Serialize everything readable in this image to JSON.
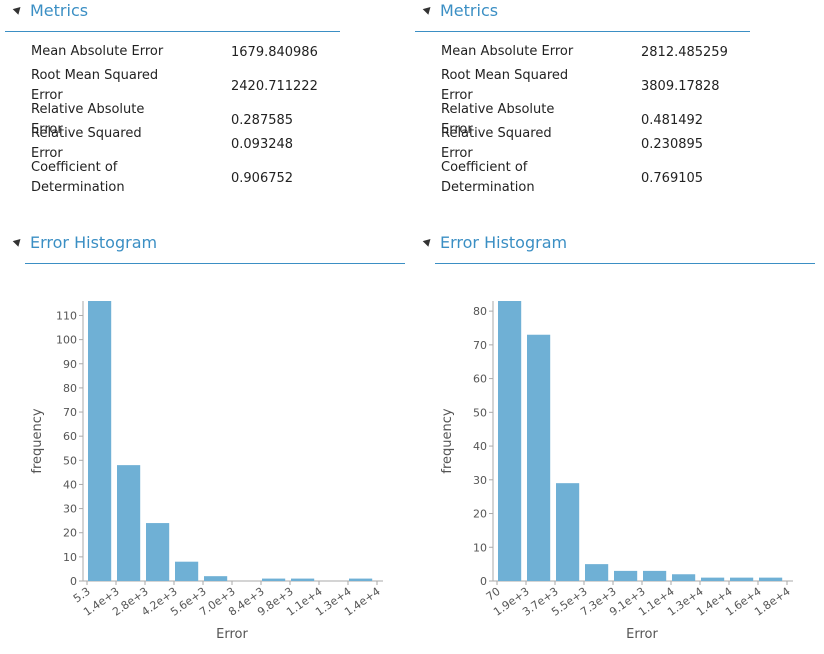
{
  "panels": [
    {
      "title": "Metrics",
      "metrics": [
        {
          "label": "Mean Absolute Error",
          "value": 1679.840986
        },
        {
          "label": "Root Mean Squared Error",
          "value": 2420.711222
        },
        {
          "label": "Relative Absolute Error",
          "value": 0.287585
        },
        {
          "label": "Relative Squared Error",
          "value": 0.093248
        },
        {
          "label": "Coefficient of Determination",
          "value": 0.906752
        }
      ]
    },
    {
      "title": "Metrics",
      "metrics": [
        {
          "label": "Mean Absolute Error",
          "value": 2812.485259
        },
        {
          "label": "Root Mean Squared Error",
          "value": 3809.17828
        },
        {
          "label": "Relative Absolute Error",
          "value": 0.481492
        },
        {
          "label": "Relative Squared Error",
          "value": 0.230895
        },
        {
          "label": "Coefficient of Determination",
          "value": 0.769105
        }
      ]
    }
  ],
  "chart_data": [
    {
      "type": "histogram",
      "title": "Error Histogram",
      "x_label": "Error",
      "y_label": "frequency",
      "color": "#6fb0d5",
      "bins": [
        5.3,
        1402.3,
        2799.3,
        4196.3,
        5593.3,
        6990.3,
        8387.3,
        9784.3,
        11181.3,
        12578.3,
        13975.3
      ],
      "values": [
        116,
        48,
        24,
        8,
        2,
        0,
        1,
        1,
        0,
        1
      ],
      "xlim": [
        5.3,
        13975.3
      ],
      "xticks": [
        {
          "value": 5.3,
          "label": "5.3"
        },
        {
          "value": 1402.3,
          "label": "1.4e+3"
        },
        {
          "value": 2799.3,
          "label": "2.8e+3"
        },
        {
          "value": 4196.3,
          "label": "4.2e+3"
        },
        {
          "value": 5593.3,
          "label": "5.6e+3"
        },
        {
          "value": 6990.3,
          "label": "7.0e+3"
        },
        {
          "value": 8387.3,
          "label": "8.4e+3"
        },
        {
          "value": 9784.3,
          "label": "9.8e+3"
        },
        {
          "value": 11181.3,
          "label": "1.1e+4"
        },
        {
          "value": 12578.3,
          "label": "1.3e+4"
        },
        {
          "value": 13975.3,
          "label": "1.4e+4"
        }
      ],
      "ylim": [
        0,
        116
      ],
      "yticks": [
        0,
        10,
        20,
        30,
        40,
        50,
        60,
        70,
        80,
        90,
        100,
        110
      ]
    },
    {
      "type": "histogram",
      "title": "Error Histogram",
      "x_label": "Error",
      "y_label": "frequency",
      "color": "#6fb0d5",
      "bins": [
        70,
        1870,
        3670,
        5470,
        7270,
        9070,
        10870,
        12670,
        14470,
        16270,
        18070
      ],
      "values": [
        83,
        73,
        29,
        5,
        3,
        3,
        2,
        1,
        1,
        1
      ],
      "xlim": [
        70,
        18070
      ],
      "xticks": [
        70,
        {
          "value": 1870,
          "label": "1.9e+3"
        },
        {
          "value": 3670,
          "label": "3.7e+3"
        },
        {
          "value": 5470,
          "label": "5.5e+3"
        },
        {
          "value": 7270,
          "label": "7.3e+3"
        },
        {
          "value": 9070,
          "label": "9.1e+3"
        },
        {
          "value": 10870,
          "label": "1.1e+4"
        },
        {
          "value": 12670,
          "label": "1.3e+4"
        },
        {
          "value": 14470,
          "label": "1.4e+4"
        },
        {
          "value": 16270,
          "label": "1.6e+4"
        },
        {
          "value": 18070,
          "label": "1.8e+4"
        }
      ],
      "ylim": [
        0,
        83
      ],
      "yticks": [
        0,
        10,
        20,
        30,
        40,
        50,
        60,
        70,
        80
      ]
    }
  ]
}
